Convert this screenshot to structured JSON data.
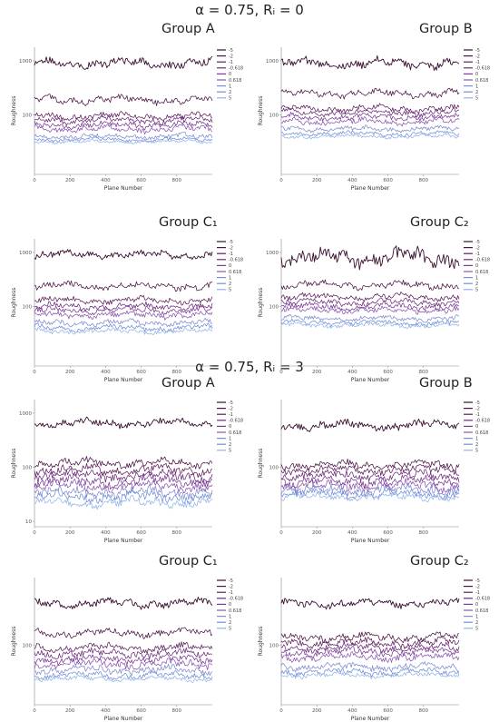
{
  "sections": [
    {
      "title": "α = 0.75,  Rᵢ = 0"
    },
    {
      "title": "α = 0.75, Rᵢ = 3"
    }
  ],
  "legend_labels": [
    "-5",
    "-2",
    "-1",
    "-0.618",
    "0",
    "0.618",
    "1",
    "2",
    "5"
  ],
  "series_colors": [
    "#3a1030",
    "#4a1444",
    "#5c1d5a",
    "#6a2a7a",
    "#7a3a92",
    "#8a55b0",
    "#7f8ad2",
    "#6f8ed8",
    "#93b5ea"
  ],
  "chart_data": [
    {
      "type": "line",
      "title": "Group A",
      "xlabel": "Plane Number",
      "ylabel": "Roughness",
      "x_range": [
        0,
        1000
      ],
      "x_ticks": [
        0,
        200,
        400,
        600,
        800
      ],
      "y_tick_labels": [
        "1000",
        "100"
      ],
      "yscale": "log",
      "grid": false,
      "legend": "right",
      "series": [
        {
          "name": "-5",
          "level": 900,
          "noise": 0.14
        },
        {
          "name": "-2",
          "level": 190,
          "noise": 0.12
        },
        {
          "name": "-1",
          "level": 95,
          "noise": 0.1
        },
        {
          "name": "-0.618",
          "level": 80,
          "noise": 0.1
        },
        {
          "name": "0",
          "level": 65,
          "noise": 0.1
        },
        {
          "name": "0.618",
          "level": 55,
          "noise": 0.1
        },
        {
          "name": "1",
          "level": 40,
          "noise": 0.08
        },
        {
          "name": "2",
          "level": 35,
          "noise": 0.06
        },
        {
          "name": "5",
          "level": 32,
          "noise": 0.05
        }
      ]
    },
    {
      "type": "line",
      "title": "Group B",
      "xlabel": "Plane Number",
      "ylabel": "Roughness",
      "x_range": [
        0,
        1000
      ],
      "x_ticks": [
        0,
        200,
        400,
        600,
        800
      ],
      "y_tick_labels": [
        "1000",
        "100"
      ],
      "yscale": "log",
      "grid": false,
      "legend": "right",
      "series": [
        {
          "name": "-5",
          "level": 900,
          "noise": 0.15
        },
        {
          "name": "-2",
          "level": 250,
          "noise": 0.12
        },
        {
          "name": "-1",
          "level": 130,
          "noise": 0.1
        },
        {
          "name": "-0.618",
          "level": 110,
          "noise": 0.1
        },
        {
          "name": "0",
          "level": 90,
          "noise": 0.1
        },
        {
          "name": "0.618",
          "level": 75,
          "noise": 0.1
        },
        {
          "name": "1",
          "level": 55,
          "noise": 0.08
        },
        {
          "name": "2",
          "level": 45,
          "noise": 0.07
        },
        {
          "name": "5",
          "level": 40,
          "noise": 0.06
        }
      ]
    },
    {
      "type": "line",
      "title": "Group C₁",
      "xlabel": "Plane Number",
      "ylabel": "Roughness",
      "x_range": [
        0,
        1000
      ],
      "x_ticks": [
        0,
        200,
        400,
        600,
        800
      ],
      "y_tick_labels": [
        "1000",
        "100"
      ],
      "yscale": "log",
      "grid": false,
      "legend": "right",
      "series": [
        {
          "name": "-5",
          "level": 900,
          "noise": 0.12
        },
        {
          "name": "-2",
          "level": 240,
          "noise": 0.12
        },
        {
          "name": "-1",
          "level": 130,
          "noise": 0.1
        },
        {
          "name": "-0.618",
          "level": 100,
          "noise": 0.1
        },
        {
          "name": "0",
          "level": 85,
          "noise": 0.1
        },
        {
          "name": "0.618",
          "level": 70,
          "noise": 0.1
        },
        {
          "name": "1",
          "level": 50,
          "noise": 0.09
        },
        {
          "name": "2",
          "level": 40,
          "noise": 0.09
        },
        {
          "name": "5",
          "level": 35,
          "noise": 0.08
        }
      ]
    },
    {
      "type": "line",
      "title": "Group C₂",
      "xlabel": "Plane Number",
      "ylabel": "Roughness",
      "x_range": [
        0,
        1000
      ],
      "x_ticks": [
        0,
        200,
        400,
        600,
        800
      ],
      "y_tick_labels": [
        "1000",
        "100"
      ],
      "yscale": "log",
      "grid": false,
      "legend": "right",
      "series": [
        {
          "name": "-5",
          "level": 800,
          "noise": 0.25
        },
        {
          "name": "-2",
          "level": 250,
          "noise": 0.12
        },
        {
          "name": "-1",
          "level": 150,
          "noise": 0.1
        },
        {
          "name": "-0.618",
          "level": 120,
          "noise": 0.1
        },
        {
          "name": "0",
          "level": 100,
          "noise": 0.1
        },
        {
          "name": "0.618",
          "level": 85,
          "noise": 0.1
        },
        {
          "name": "1",
          "level": 60,
          "noise": 0.08
        },
        {
          "name": "2",
          "level": 50,
          "noise": 0.08
        },
        {
          "name": "5",
          "level": 45,
          "noise": 0.07
        }
      ]
    },
    {
      "type": "line",
      "title": "Group A",
      "xlabel": "Plane Number",
      "ylabel": "Roughness",
      "x_range": [
        0,
        1000
      ],
      "x_ticks": [
        0,
        200,
        400,
        600,
        800
      ],
      "y_tick_labels": [
        "1000",
        "100",
        "10"
      ],
      "yscale": "log",
      "grid": false,
      "legend": "right",
      "series": [
        {
          "name": "-5",
          "level": 650,
          "noise": 0.12
        },
        {
          "name": "-2",
          "level": 120,
          "noise": 0.13
        },
        {
          "name": "-1",
          "level": 90,
          "noise": 0.15
        },
        {
          "name": "-0.618",
          "level": 70,
          "noise": 0.15
        },
        {
          "name": "0",
          "level": 55,
          "noise": 0.15
        },
        {
          "name": "0.618",
          "level": 45,
          "noise": 0.15
        },
        {
          "name": "1",
          "level": 35,
          "noise": 0.16
        },
        {
          "name": "2",
          "level": 28,
          "noise": 0.16
        },
        {
          "name": "5",
          "level": 22,
          "noise": 0.14
        }
      ]
    },
    {
      "type": "line",
      "title": "Group B",
      "xlabel": "Plane Number",
      "ylabel": "Roughness",
      "x_range": [
        0,
        1000
      ],
      "x_ticks": [
        0,
        200,
        400,
        600,
        800
      ],
      "y_tick_labels": [
        "100"
      ],
      "yscale": "log",
      "grid": false,
      "legend": "right",
      "series": [
        {
          "name": "-5",
          "level": 600,
          "noise": 0.14
        },
        {
          "name": "-2",
          "level": 110,
          "noise": 0.12
        },
        {
          "name": "-1",
          "level": 90,
          "noise": 0.12
        },
        {
          "name": "-0.618",
          "level": 70,
          "noise": 0.14
        },
        {
          "name": "0",
          "level": 55,
          "noise": 0.14
        },
        {
          "name": "0.618",
          "level": 45,
          "noise": 0.15
        },
        {
          "name": "1",
          "level": 38,
          "noise": 0.15
        },
        {
          "name": "2",
          "level": 32,
          "noise": 0.12
        },
        {
          "name": "5",
          "level": 28,
          "noise": 0.1
        }
      ]
    },
    {
      "type": "line",
      "title": "Group C₁",
      "xlabel": "Plane Number",
      "ylabel": "Roughness",
      "x_range": [
        0,
        1000
      ],
      "x_ticks": [
        0,
        200,
        400,
        600,
        800
      ],
      "y_tick_labels": [
        "100"
      ],
      "yscale": "log",
      "grid": false,
      "legend": "right",
      "series": [
        {
          "name": "-5",
          "level": 600,
          "noise": 0.13
        },
        {
          "name": "-2",
          "level": 170,
          "noise": 0.12
        },
        {
          "name": "-1",
          "level": 90,
          "noise": 0.12
        },
        {
          "name": "-0.618",
          "level": 70,
          "noise": 0.12
        },
        {
          "name": "0",
          "level": 55,
          "noise": 0.12
        },
        {
          "name": "0.618",
          "level": 45,
          "noise": 0.13
        },
        {
          "name": "1",
          "level": 35,
          "noise": 0.12
        },
        {
          "name": "2",
          "level": 28,
          "noise": 0.1
        },
        {
          "name": "5",
          "level": 24,
          "noise": 0.08
        }
      ]
    },
    {
      "type": "line",
      "title": "Group C₂",
      "xlabel": "Plane Number",
      "ylabel": "Roughness",
      "x_range": [
        0,
        1000
      ],
      "x_ticks": [
        0,
        200,
        400,
        600,
        800
      ],
      "y_tick_labels": [
        "100"
      ],
      "yscale": "log",
      "grid": false,
      "legend": "right",
      "series": [
        {
          "name": "-5",
          "level": 600,
          "noise": 0.12
        },
        {
          "name": "-2",
          "level": 140,
          "noise": 0.12
        },
        {
          "name": "-1",
          "level": 110,
          "noise": 0.12
        },
        {
          "name": "-0.618",
          "level": 90,
          "noise": 0.12
        },
        {
          "name": "0",
          "level": 75,
          "noise": 0.12
        },
        {
          "name": "0.618",
          "level": 60,
          "noise": 0.12
        },
        {
          "name": "1",
          "level": 40,
          "noise": 0.12
        },
        {
          "name": "2",
          "level": 32,
          "noise": 0.1
        },
        {
          "name": "5",
          "level": 28,
          "noise": 0.08
        }
      ]
    }
  ]
}
